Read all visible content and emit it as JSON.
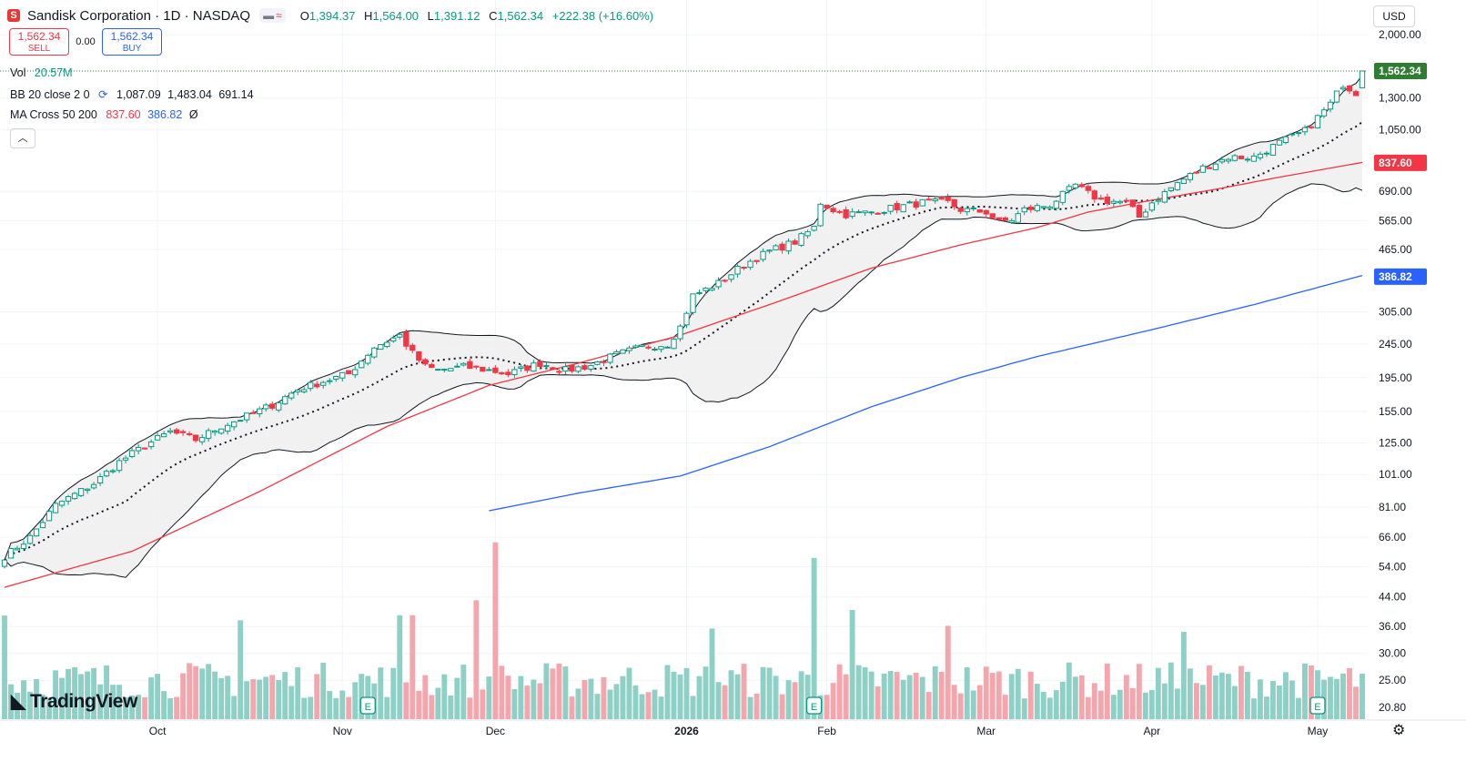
{
  "header": {
    "title": "Sandisk Corporation · 1D · NASDAQ",
    "o_label": "O",
    "o": "1,394.37",
    "h_label": "H",
    "h": "1,564.00",
    "l_label": "L",
    "l": "1,391.12",
    "c_label": "C",
    "c": "1,562.34",
    "change": "+222.38 (+16.60%)"
  },
  "trade": {
    "sell_price": "1,562.34",
    "sell_label": "SELL",
    "spread": "0.00",
    "buy_price": "1,562.34",
    "buy_label": "BUY"
  },
  "indicators": {
    "vol": {
      "name": "Vol",
      "value": "20.57M"
    },
    "bb": {
      "name": "BB 20 close 2 0",
      "basis": "1,087.09",
      "upper": "1,483.04",
      "lower": "691.14"
    },
    "ma": {
      "name": "MA Cross 50 200",
      "ma50": "837.60",
      "ma200": "386.82",
      "extra": "Ø"
    }
  },
  "currency": "USD",
  "branding": "TradingView",
  "colors": {
    "up": "#089981",
    "down": "#f23645",
    "up_vol": "#8fd0c6",
    "down_vol": "#f5a6ad",
    "ma50": "#f23645",
    "ma200": "#2962ff",
    "bb_fill": "#f0f0f0",
    "last_price": "#2e7d32"
  },
  "chart_data": {
    "type": "candlestick",
    "scale": "log",
    "ylim": [
      20.8,
      2100
    ],
    "y_ticks": [
      "2,000.00",
      "1,300.00",
      "1,050.00",
      "690.00",
      "565.00",
      "465.00",
      "305.00",
      "245.00",
      "195.00",
      "155.00",
      "125.00",
      "101.00",
      "81.00",
      "66.00",
      "54.00",
      "44.00",
      "36.00",
      "30.00",
      "25.00",
      "20.80"
    ],
    "y_tick_values": [
      2000,
      1300,
      1050,
      690,
      565,
      465,
      305,
      245,
      195,
      155,
      125,
      101,
      81,
      66,
      54,
      44,
      36,
      30,
      25,
      20.8
    ],
    "x_labels": [
      "Oct",
      "Nov",
      "Dec",
      "2026",
      "Feb",
      "Mar",
      "Apr",
      "May"
    ],
    "x_label_bars": [
      24,
      53,
      77,
      107,
      129,
      154,
      180,
      206
    ],
    "bars": 214,
    "close_anchors": [
      [
        0,
        58
      ],
      [
        4,
        66
      ],
      [
        8,
        82
      ],
      [
        14,
        95
      ],
      [
        18,
        110
      ],
      [
        22,
        123
      ],
      [
        26,
        135
      ],
      [
        30,
        128
      ],
      [
        34,
        140
      ],
      [
        38,
        150
      ],
      [
        42,
        162
      ],
      [
        46,
        180
      ],
      [
        50,
        190
      ],
      [
        54,
        200
      ],
      [
        58,
        240
      ],
      [
        62,
        260
      ],
      [
        64,
        230
      ],
      [
        66,
        210
      ],
      [
        68,
        205
      ],
      [
        72,
        210
      ],
      [
        76,
        205
      ],
      [
        79,
        200
      ],
      [
        84,
        215
      ],
      [
        86,
        210
      ],
      [
        88,
        205
      ],
      [
        92,
        212
      ],
      [
        96,
        228
      ],
      [
        100,
        240
      ],
      [
        104,
        245
      ],
      [
        106,
        275
      ],
      [
        108,
        340
      ],
      [
        112,
        370
      ],
      [
        116,
        420
      ],
      [
        120,
        460
      ],
      [
        124,
        490
      ],
      [
        127,
        540
      ],
      [
        128,
        640
      ],
      [
        130,
        610
      ],
      [
        132,
        590
      ],
      [
        136,
        600
      ],
      [
        140,
        620
      ],
      [
        144,
        640
      ],
      [
        148,
        640
      ],
      [
        150,
        610
      ],
      [
        154,
        600
      ],
      [
        156,
        560
      ],
      [
        158,
        570
      ],
      [
        160,
        610
      ],
      [
        164,
        630
      ],
      [
        168,
        720
      ],
      [
        170,
        680
      ],
      [
        172,
        650
      ],
      [
        176,
        640
      ],
      [
        178,
        580
      ],
      [
        180,
        640
      ],
      [
        184,
        730
      ],
      [
        188,
        810
      ],
      [
        192,
        870
      ],
      [
        196,
        870
      ],
      [
        200,
        960
      ],
      [
        204,
        1040
      ],
      [
        208,
        1250
      ],
      [
        210,
        1430
      ],
      [
        212,
        1350
      ],
      [
        213,
        1562
      ]
    ],
    "ma50_anchors": [
      [
        0,
        47
      ],
      [
        20,
        60
      ],
      [
        40,
        90
      ],
      [
        60,
        140
      ],
      [
        76,
        185
      ],
      [
        90,
        215
      ],
      [
        106,
        260
      ],
      [
        120,
        320
      ],
      [
        136,
        410
      ],
      [
        150,
        480
      ],
      [
        162,
        540
      ],
      [
        170,
        600
      ],
      [
        180,
        650
      ],
      [
        190,
        700
      ],
      [
        200,
        760
      ],
      [
        213,
        840
      ]
    ],
    "ma200_anchors": [
      [
        76,
        79
      ],
      [
        90,
        89
      ],
      [
        106,
        100
      ],
      [
        120,
        122
      ],
      [
        136,
        160
      ],
      [
        150,
        195
      ],
      [
        162,
        225
      ],
      [
        180,
        270
      ],
      [
        196,
        320
      ],
      [
        213,
        390
      ]
    ],
    "last_price": "1,562.34",
    "ma50_last": "837.60",
    "ma200_last": "386.82",
    "volume_max_m": 70,
    "earnings_markers": [
      57,
      127,
      206
    ]
  }
}
